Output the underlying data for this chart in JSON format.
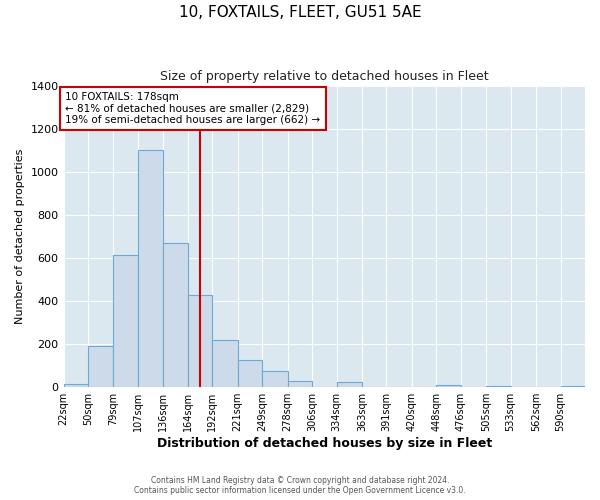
{
  "title": "10, FOXTAILS, FLEET, GU51 5AE",
  "subtitle": "Size of property relative to detached houses in Fleet",
  "xlabel": "Distribution of detached houses by size in Fleet",
  "ylabel": "Number of detached properties",
  "bar_color": "#ccdaea",
  "bar_edge_color": "#6aaad4",
  "background_color": "#dce8f0",
  "grid_color": "#ffffff",
  "bin_labels": [
    "22sqm",
    "50sqm",
    "79sqm",
    "107sqm",
    "136sqm",
    "164sqm",
    "192sqm",
    "221sqm",
    "249sqm",
    "278sqm",
    "306sqm",
    "334sqm",
    "363sqm",
    "391sqm",
    "420sqm",
    "448sqm",
    "476sqm",
    "505sqm",
    "533sqm",
    "562sqm",
    "590sqm"
  ],
  "bin_edges": [
    22,
    50,
    79,
    107,
    136,
    164,
    192,
    221,
    249,
    278,
    306,
    334,
    363,
    391,
    420,
    448,
    476,
    505,
    533,
    562,
    590,
    618
  ],
  "bar_heights": [
    15,
    190,
    615,
    1100,
    670,
    430,
    220,
    125,
    75,
    30,
    0,
    25,
    0,
    0,
    0,
    10,
    0,
    5,
    0,
    0,
    5
  ],
  "property_size": 178,
  "vline_color": "#cc0000",
  "annotation_box_color": "#cc0000",
  "annotation_title": "10 FOXTAILS: 178sqm",
  "annotation_line1": "← 81% of detached houses are smaller (2,829)",
  "annotation_line2": "19% of semi-detached houses are larger (662) →",
  "ylim": [
    0,
    1400
  ],
  "yticks": [
    0,
    200,
    400,
    600,
    800,
    1000,
    1200,
    1400
  ],
  "footer_line1": "Contains HM Land Registry data © Crown copyright and database right 2024.",
  "footer_line2": "Contains public sector information licensed under the Open Government Licence v3.0."
}
